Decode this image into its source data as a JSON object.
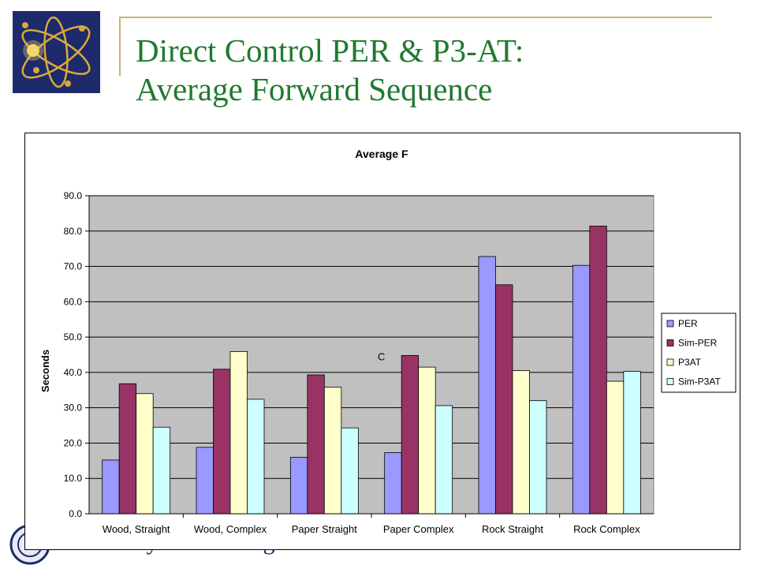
{
  "slide": {
    "title_line1": "Direct Control PER & P3-AT:",
    "title_line2": "Average Forward Sequence",
    "footer_text": "University of Pittsburgh"
  },
  "colors": {
    "title": "#1f7a2e",
    "rule": "#c8b36a",
    "logo_bg": "#1d2a6b",
    "plot_bg": "#c0c0c0"
  },
  "chart_data": {
    "type": "bar",
    "title": "Average F",
    "xlabel": "",
    "ylabel": "Seconds",
    "ylim": [
      0,
      90
    ],
    "ytick_step": 10,
    "yticks": [
      "0.0",
      "10.0",
      "20.0",
      "30.0",
      "40.0",
      "50.0",
      "60.0",
      "70.0",
      "80.0",
      "90.0"
    ],
    "grid": true,
    "legend_position": "right",
    "categories": [
      "Wood, Straight",
      "Wood, Complex",
      "Paper Straight",
      "Paper Complex",
      "Rock Straight",
      "Rock Complex"
    ],
    "series": [
      {
        "name": "PER",
        "color": "#9999ff",
        "values": [
          15.2,
          18.8,
          16.0,
          17.3,
          72.8,
          70.3
        ]
      },
      {
        "name": "Sim-PER",
        "color": "#993366",
        "values": [
          36.8,
          40.9,
          39.3,
          44.8,
          64.8,
          81.4
        ]
      },
      {
        "name": "P3AT",
        "color": "#ffffcc",
        "values": [
          34.0,
          45.9,
          35.8,
          41.5,
          40.5,
          37.5
        ]
      },
      {
        "name": "Sim-P3AT",
        "color": "#ccffff",
        "values": [
          24.5,
          32.4,
          24.3,
          30.6,
          32.0,
          40.3
        ]
      }
    ],
    "annotations": [
      {
        "text": "C",
        "category": "Paper Straight",
        "y": 45
      }
    ]
  }
}
